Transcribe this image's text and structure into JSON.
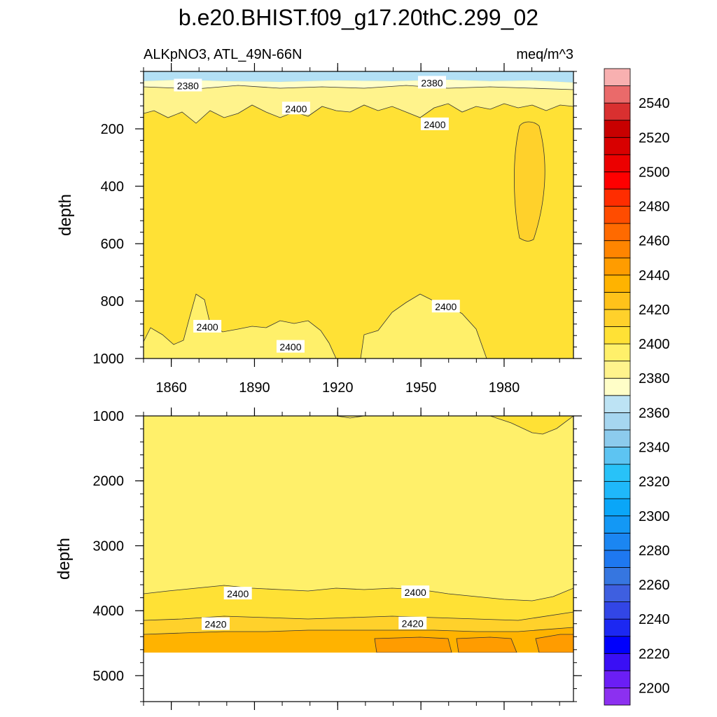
{
  "figure": {
    "title": "b.e20.BHIST.f09_g17.20thC.299_02",
    "left_label": "ALKpNO3, ATL_49N-66N",
    "right_label": "meq/m^3"
  },
  "chart_data": [
    {
      "type": "contour",
      "panel": "upper",
      "ylabel": "depth",
      "x_ticks": [
        1860,
        1890,
        1920,
        1950,
        1980
      ],
      "y_ticks": [
        200,
        400,
        600,
        800,
        1000
      ],
      "xlim": [
        1850,
        2005
      ],
      "ylim": [
        0,
        1000
      ],
      "y_inverted": true,
      "regions": [
        {
          "level": 2350,
          "color": "#b3e0f5",
          "note": "thin surface layer",
          "depth_range": [
            0,
            25
          ]
        },
        {
          "level": 2370,
          "color": "#fffec8",
          "depth_range": [
            25,
            50
          ]
        },
        {
          "level": 2380,
          "color": "#fff3a0",
          "depth_range": [
            50,
            160
          ]
        },
        {
          "level": 2390,
          "color": "#ffe135",
          "depth_range": [
            160,
            900
          ]
        },
        {
          "level": 2400,
          "color": "#ffd12b",
          "note": "lens near 1985-1995",
          "x_range": [
            1985,
            1995
          ],
          "depth_range": [
            180,
            600
          ]
        },
        {
          "level": 2390,
          "color": "#fff06a",
          "note": "deep bottom patches",
          "depth_range": [
            780,
            1000
          ]
        }
      ],
      "contour_labels": [
        {
          "text": "2380",
          "x": 1866,
          "y": 50
        },
        {
          "text": "2380",
          "x": 1954,
          "y": 40
        },
        {
          "text": "2400",
          "x": 1905,
          "y": 130
        },
        {
          "text": "2400",
          "x": 1955,
          "y": 185
        },
        {
          "text": "2400",
          "x": 1873,
          "y": 890
        },
        {
          "text": "2400",
          "x": 1903,
          "y": 960
        },
        {
          "text": "2400",
          "x": 1959,
          "y": 820
        }
      ]
    },
    {
      "type": "contour",
      "panel": "lower",
      "ylabel": "depth",
      "y_ticks": [
        1000,
        2000,
        3000,
        4000,
        5000
      ],
      "xlim": [
        1850,
        2005
      ],
      "ylim": [
        1000,
        5400
      ],
      "y_inverted": true,
      "regions": [
        {
          "level": 2390,
          "color": "#fff06a",
          "depth_range": [
            1000,
            3700
          ]
        },
        {
          "level": 2400,
          "color": "#ffe135",
          "depth_range": [
            3700,
            4100
          ]
        },
        {
          "level": 2410,
          "color": "#ffd12b",
          "depth_range": [
            4100,
            4300
          ]
        },
        {
          "level": 2420,
          "color": "#ffb300",
          "depth_range": [
            4300,
            4600
          ]
        },
        {
          "level": 2430,
          "color": "#ff9c00",
          "note": "deep patches after 1935",
          "depth_range": [
            4350,
            4600
          ]
        }
      ],
      "contour_labels": [
        {
          "text": "2400",
          "x": 1884,
          "y": 3740
        },
        {
          "text": "2400",
          "x": 1948,
          "y": 3720
        },
        {
          "text": "2420",
          "x": 1876,
          "y": 4210
        },
        {
          "text": "2420",
          "x": 1947,
          "y": 4200
        }
      ]
    },
    {
      "type": "colorbar",
      "tick_labels": [
        "2200",
        "2220",
        "2240",
        "2260",
        "2280",
        "2300",
        "2320",
        "2340",
        "2360",
        "2380",
        "2400",
        "2420",
        "2440",
        "2460",
        "2480",
        "2500",
        "2520",
        "2540"
      ],
      "bins": [
        {
          "lo": 2190,
          "color": "#8c30f0"
        },
        {
          "lo": 2200,
          "color": "#6b1ef5"
        },
        {
          "lo": 2210,
          "color": "#3a0ff5"
        },
        {
          "lo": 2220,
          "color": "#0000fc"
        },
        {
          "lo": 2230,
          "color": "#1c28f2"
        },
        {
          "lo": 2240,
          "color": "#3246e6"
        },
        {
          "lo": 2250,
          "color": "#3e5fe0"
        },
        {
          "lo": 2260,
          "color": "#3676e0"
        },
        {
          "lo": 2270,
          "color": "#1e78f0"
        },
        {
          "lo": 2280,
          "color": "#1b86f2"
        },
        {
          "lo": 2290,
          "color": "#1398f5"
        },
        {
          "lo": 2300,
          "color": "#0aa6f8"
        },
        {
          "lo": 2310,
          "color": "#1fb8fa"
        },
        {
          "lo": 2320,
          "color": "#28c2f8"
        },
        {
          "lo": 2330,
          "color": "#5dc4f2"
        },
        {
          "lo": 2340,
          "color": "#8ccbed"
        },
        {
          "lo": 2350,
          "color": "#a6d6f0"
        },
        {
          "lo": 2360,
          "color": "#bde3f4"
        },
        {
          "lo": 2370,
          "color": "#fffec8"
        },
        {
          "lo": 2380,
          "color": "#fff38c"
        },
        {
          "lo": 2390,
          "color": "#fff06a"
        },
        {
          "lo": 2400,
          "color": "#ffe135"
        },
        {
          "lo": 2410,
          "color": "#ffd12b"
        },
        {
          "lo": 2420,
          "color": "#ffc21a"
        },
        {
          "lo": 2430,
          "color": "#ffb300"
        },
        {
          "lo": 2440,
          "color": "#ff9c00"
        },
        {
          "lo": 2450,
          "color": "#ff8500"
        },
        {
          "lo": 2460,
          "color": "#ff6a00"
        },
        {
          "lo": 2470,
          "color": "#ff4c00"
        },
        {
          "lo": 2480,
          "color": "#ff2d00"
        },
        {
          "lo": 2490,
          "color": "#ff0000"
        },
        {
          "lo": 2500,
          "color": "#ec0000"
        },
        {
          "lo": 2510,
          "color": "#d80000"
        },
        {
          "lo": 2520,
          "color": "#c80000"
        },
        {
          "lo": 2530,
          "color": "#d93030"
        },
        {
          "lo": 2540,
          "color": "#ea6a6a"
        },
        {
          "lo": 2550,
          "color": "#f8b0b0"
        }
      ]
    }
  ]
}
